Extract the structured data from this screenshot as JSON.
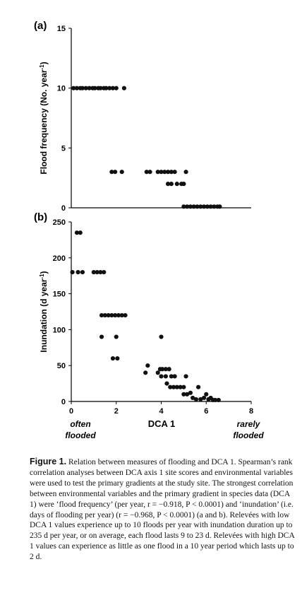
{
  "chart_data": [
    {
      "type": "scatter",
      "panel_label": "(a)",
      "ylabel": "Flood frequency (No. year",
      "ylabel_sup": "-1",
      "ylabel_close": ")",
      "xlabel": "",
      "ylim": [
        0,
        15
      ],
      "xlim": [
        0,
        8
      ],
      "yticks": [
        "0",
        "5",
        "10",
        "15"
      ],
      "ytick_values": [
        0,
        5,
        10,
        15
      ],
      "xticks": [],
      "grid": false,
      "points": [
        {
          "x": 0.1,
          "y": 10
        },
        {
          "x": 0.25,
          "y": 10
        },
        {
          "x": 0.4,
          "y": 10
        },
        {
          "x": 0.5,
          "y": 10
        },
        {
          "x": 0.65,
          "y": 10
        },
        {
          "x": 0.8,
          "y": 10
        },
        {
          "x": 0.95,
          "y": 10
        },
        {
          "x": 1.05,
          "y": 10
        },
        {
          "x": 1.2,
          "y": 10
        },
        {
          "x": 1.3,
          "y": 10
        },
        {
          "x": 1.45,
          "y": 10
        },
        {
          "x": 1.55,
          "y": 10
        },
        {
          "x": 1.7,
          "y": 10
        },
        {
          "x": 1.85,
          "y": 10
        },
        {
          "x": 2.0,
          "y": 10
        },
        {
          "x": 2.35,
          "y": 10
        },
        {
          "x": 1.8,
          "y": 3
        },
        {
          "x": 1.95,
          "y": 3
        },
        {
          "x": 2.25,
          "y": 3
        },
        {
          "x": 3.35,
          "y": 3
        },
        {
          "x": 3.5,
          "y": 3
        },
        {
          "x": 3.85,
          "y": 3
        },
        {
          "x": 4.0,
          "y": 3
        },
        {
          "x": 4.15,
          "y": 3
        },
        {
          "x": 4.3,
          "y": 3
        },
        {
          "x": 4.45,
          "y": 3
        },
        {
          "x": 4.6,
          "y": 3
        },
        {
          "x": 5.1,
          "y": 3
        },
        {
          "x": 4.3,
          "y": 2
        },
        {
          "x": 4.45,
          "y": 2
        },
        {
          "x": 4.7,
          "y": 2
        },
        {
          "x": 4.9,
          "y": 2
        },
        {
          "x": 5.0,
          "y": 2
        },
        {
          "x": 5.0,
          "y": 0.1
        },
        {
          "x": 5.15,
          "y": 0.1
        },
        {
          "x": 5.3,
          "y": 0.1
        },
        {
          "x": 5.45,
          "y": 0.1
        },
        {
          "x": 5.6,
          "y": 0.1
        },
        {
          "x": 5.75,
          "y": 0.1
        },
        {
          "x": 5.9,
          "y": 0.1
        },
        {
          "x": 6.05,
          "y": 0.1
        },
        {
          "x": 6.2,
          "y": 0.1
        },
        {
          "x": 6.35,
          "y": 0.1
        },
        {
          "x": 6.5,
          "y": 0.1
        },
        {
          "x": 6.6,
          "y": 0.1
        }
      ]
    },
    {
      "type": "scatter",
      "panel_label": "(b)",
      "ylabel": "Inundation (d year",
      "ylabel_sup": "-1",
      "ylabel_close": ")",
      "xlabel": "DCA 1",
      "ylim": [
        0,
        250
      ],
      "xlim": [
        0,
        8
      ],
      "yticks": [
        "0",
        "50",
        "100",
        "150",
        "200",
        "250"
      ],
      "ytick_values": [
        0,
        50,
        100,
        150,
        200,
        250
      ],
      "xticks": [
        "0",
        "2",
        "4",
        "6",
        "8"
      ],
      "xtick_values": [
        0,
        2,
        4,
        6,
        8
      ],
      "x_end_labels": {
        "left_line1": "often",
        "left_line2": "flooded",
        "right_line1": "rarely",
        "right_line2": "flooded"
      },
      "grid": false,
      "points": [
        {
          "x": 0.25,
          "y": 235
        },
        {
          "x": 0.4,
          "y": 235
        },
        {
          "x": 0.05,
          "y": 180
        },
        {
          "x": 0.3,
          "y": 180
        },
        {
          "x": 0.5,
          "y": 180
        },
        {
          "x": 1.0,
          "y": 180
        },
        {
          "x": 1.15,
          "y": 180
        },
        {
          "x": 1.3,
          "y": 180
        },
        {
          "x": 1.45,
          "y": 180
        },
        {
          "x": 1.35,
          "y": 120
        },
        {
          "x": 1.5,
          "y": 120
        },
        {
          "x": 1.65,
          "y": 120
        },
        {
          "x": 1.8,
          "y": 120
        },
        {
          "x": 1.95,
          "y": 120
        },
        {
          "x": 2.1,
          "y": 120
        },
        {
          "x": 2.25,
          "y": 120
        },
        {
          "x": 2.4,
          "y": 120
        },
        {
          "x": 1.35,
          "y": 90
        },
        {
          "x": 2.0,
          "y": 90
        },
        {
          "x": 1.85,
          "y": 60
        },
        {
          "x": 2.05,
          "y": 60
        },
        {
          "x": 4.0,
          "y": 90
        },
        {
          "x": 3.3,
          "y": 40
        },
        {
          "x": 3.4,
          "y": 50
        },
        {
          "x": 3.85,
          "y": 40
        },
        {
          "x": 3.95,
          "y": 45
        },
        {
          "x": 4.05,
          "y": 45
        },
        {
          "x": 4.2,
          "y": 45
        },
        {
          "x": 4.35,
          "y": 45
        },
        {
          "x": 4.0,
          "y": 35
        },
        {
          "x": 4.2,
          "y": 35
        },
        {
          "x": 4.45,
          "y": 35
        },
        {
          "x": 4.6,
          "y": 35
        },
        {
          "x": 4.25,
          "y": 25
        },
        {
          "x": 4.4,
          "y": 20
        },
        {
          "x": 4.55,
          "y": 20
        },
        {
          "x": 4.7,
          "y": 20
        },
        {
          "x": 4.85,
          "y": 20
        },
        {
          "x": 5.0,
          "y": 20
        },
        {
          "x": 5.1,
          "y": 35
        },
        {
          "x": 5.0,
          "y": 10
        },
        {
          "x": 5.15,
          "y": 10
        },
        {
          "x": 5.3,
          "y": 12
        },
        {
          "x": 5.4,
          "y": 5
        },
        {
          "x": 5.55,
          "y": 3
        },
        {
          "x": 5.65,
          "y": 20
        },
        {
          "x": 5.75,
          "y": 3
        },
        {
          "x": 5.9,
          "y": 5
        },
        {
          "x": 6.0,
          "y": 10
        },
        {
          "x": 6.1,
          "y": 3
        },
        {
          "x": 6.2,
          "y": 5
        },
        {
          "x": 6.3,
          "y": 2
        },
        {
          "x": 6.4,
          "y": 2
        },
        {
          "x": 6.55,
          "y": 2
        }
      ]
    }
  ],
  "caption": {
    "label": "Figure 1.",
    "text": "Relation between measures of flooding and DCA 1. Spearman’s rank correlation analyses between DCA axis 1 site scores and environmental variables were used to test the primary gradients at the study site. The strongest correlation between environmental variables and the primary gradient in species data (DCA 1) were ‘flood frequency’ (per year, r = −0.918, P < 0.0001) and ‘inundation’ (i.e. days of flooding per year) (r = −0.968, P < 0.0001) (a and b). Relevées with low DCA 1 values experience up to 10 floods per year with inundation duration up to 235 d per year, or on average, each flood lasts 9 to 23 d. Relevées with high DCA 1 values can experience as little as one flood in a 10 year period which lasts up to 2 d."
  },
  "colors": {
    "marker": "#111111",
    "axis": "#000000"
  }
}
